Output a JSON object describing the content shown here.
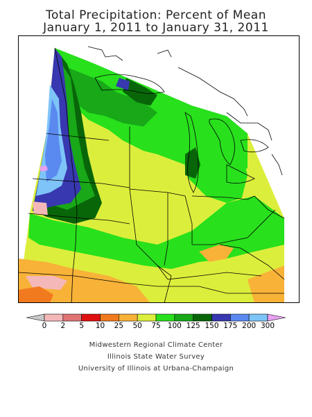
{
  "title": {
    "line1": "Total Precipitation: Percent of Mean",
    "line2": "January 1, 2011 to January 31, 2011"
  },
  "legend": {
    "ticks": [
      "0",
      "2",
      "5",
      "10",
      "25",
      "50",
      "75",
      "100",
      "125",
      "150",
      "175",
      "200",
      "300"
    ],
    "colors": [
      "#c8c8c8",
      "#f5b8b8",
      "#e07474",
      "#e01010",
      "#f27a1e",
      "#f8b238",
      "#dcee3c",
      "#28e01c",
      "#18a818",
      "#086608",
      "#3838b0",
      "#5a8af0",
      "#7ec4f8",
      "#e8a0f0"
    ]
  },
  "credits": {
    "line1": "Midwestern Regional Climate Center",
    "line2": "Illinois State Water Survey",
    "line3": "University of Illinois at Urbana-Champaign"
  }
}
